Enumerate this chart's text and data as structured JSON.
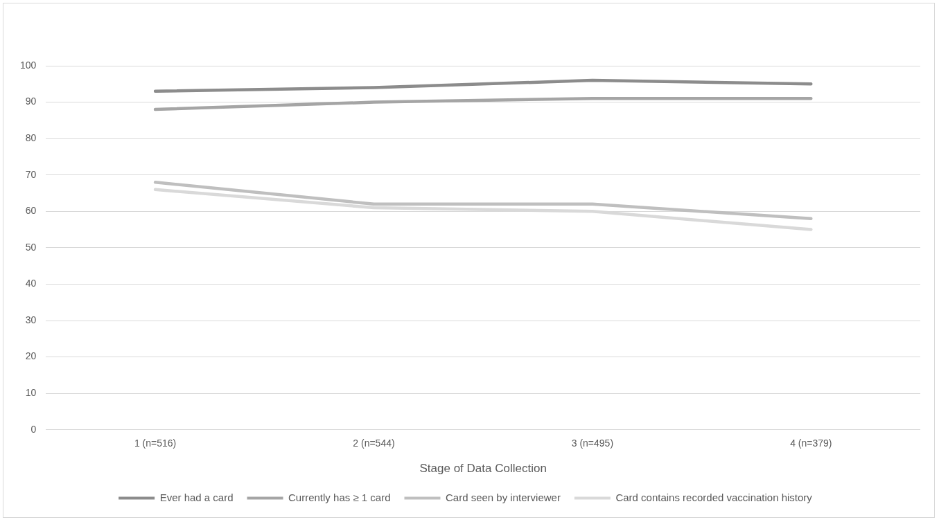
{
  "chart_data": {
    "type": "line",
    "xlabel": "Stage of Data Collection",
    "categories": [
      "1 (n=516)",
      "2 (n=544)",
      "3 (n=495)",
      "4 (n=379)"
    ],
    "series": [
      {
        "name": "Ever had a card",
        "color": "#8c8c8c",
        "values": [
          93,
          94,
          96,
          95
        ]
      },
      {
        "name": "Currently has ≥ 1 card",
        "color": "#a5a5a5",
        "values": [
          88,
          90,
          91,
          91
        ]
      },
      {
        "name": "Card seen by interviewer",
        "color": "#bfbfbf",
        "values": [
          68,
          62,
          62,
          58
        ]
      },
      {
        "name": "Card contains recorded vaccination history",
        "color": "#d9d9d9",
        "values": [
          66,
          61,
          60,
          55
        ]
      }
    ],
    "ylim": [
      0,
      100
    ],
    "yticks": [
      0,
      10,
      20,
      30,
      40,
      50,
      60,
      70,
      80,
      90,
      100
    ],
    "grid": "y",
    "legend": "bottom",
    "marker": "none",
    "line_style": "solid"
  }
}
